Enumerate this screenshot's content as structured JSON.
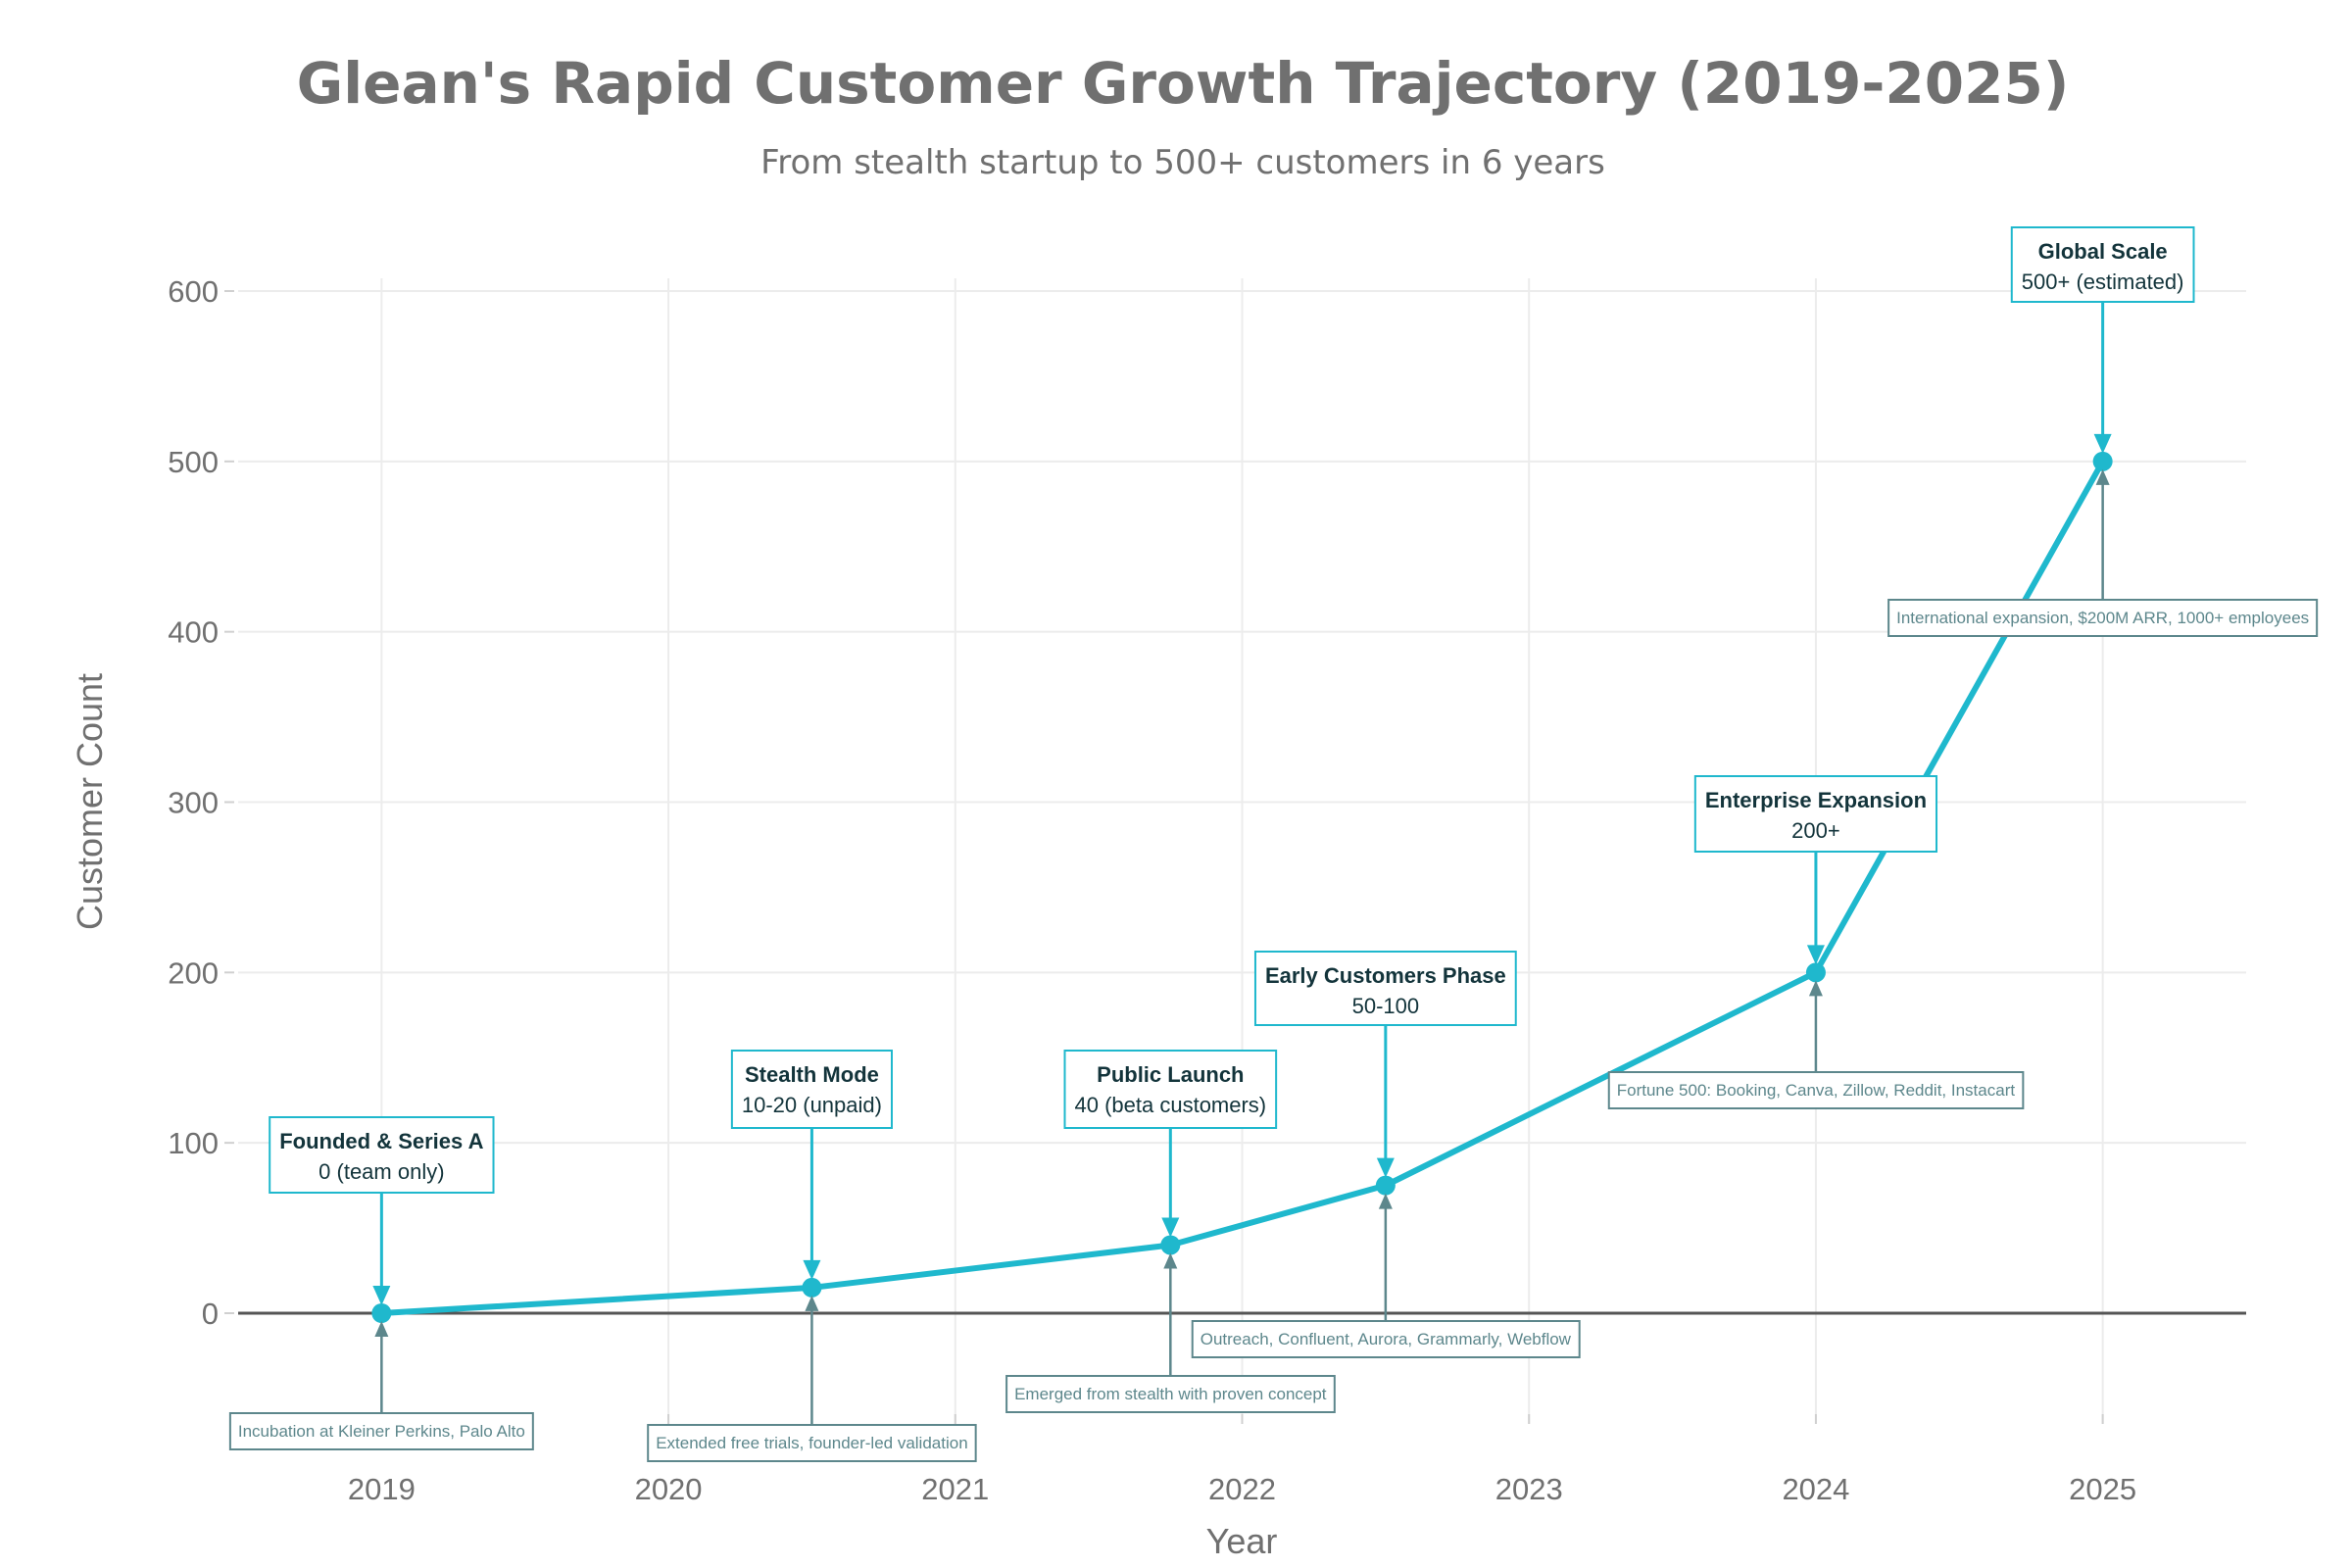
{
  "chart_data": {
    "type": "line",
    "title": "Glean's Rapid Customer Growth Trajectory (2019-2025)",
    "subtitle": "From stealth startup to 500+ customers in 6 years",
    "xlabel": "Year",
    "ylabel": "Customer Count",
    "xlim": [
      2018.5,
      2025.5
    ],
    "ylim": [
      -65,
      600
    ],
    "xticks": [
      2019,
      2020,
      2021,
      2022,
      2023,
      2024,
      2025
    ],
    "xtick_labels": [
      "2019",
      "2020",
      "2021",
      "2022",
      "2023",
      "2024",
      "2025"
    ],
    "yticks": [
      0,
      100,
      200,
      300,
      400,
      500,
      600
    ],
    "ytick_labels": [
      "0",
      "100",
      "200",
      "300",
      "400",
      "500",
      "600"
    ],
    "grid": true,
    "colors": {
      "line": "#1fb8cd",
      "annotation_low": "#5d878c",
      "text": "#13343b"
    },
    "series": [
      {
        "name": "Customers",
        "x": [
          2019,
          2020.5,
          2021.75,
          2022.5,
          2024,
          2025
        ],
        "y": [
          0,
          15,
          40,
          75,
          200,
          500
        ]
      }
    ],
    "annotations": [
      {
        "phase": "Founded & Series A",
        "label": "0 (team only)",
        "note": "Incubation at Kleiner Perkins, Palo Alto"
      },
      {
        "phase": "Stealth Mode",
        "label": "10-20 (unpaid)",
        "note": "Extended free trials, founder-led validation"
      },
      {
        "phase": "Public Launch",
        "label": "40 (beta customers)",
        "note": "Emerged from stealth with proven concept"
      },
      {
        "phase": "Early Customers Phase",
        "label": "50-100",
        "note": "Outreach, Confluent, Aurora, Grammarly, Webflow"
      },
      {
        "phase": "Enterprise Expansion",
        "label": "200+",
        "note": "Fortune 500: Booking, Canva, Zillow, Reddit, Instacart"
      },
      {
        "phase": "Global Scale",
        "label": "500+ (estimated)",
        "note": "International expansion, $200M ARR, 1000+ employees"
      }
    ]
  }
}
